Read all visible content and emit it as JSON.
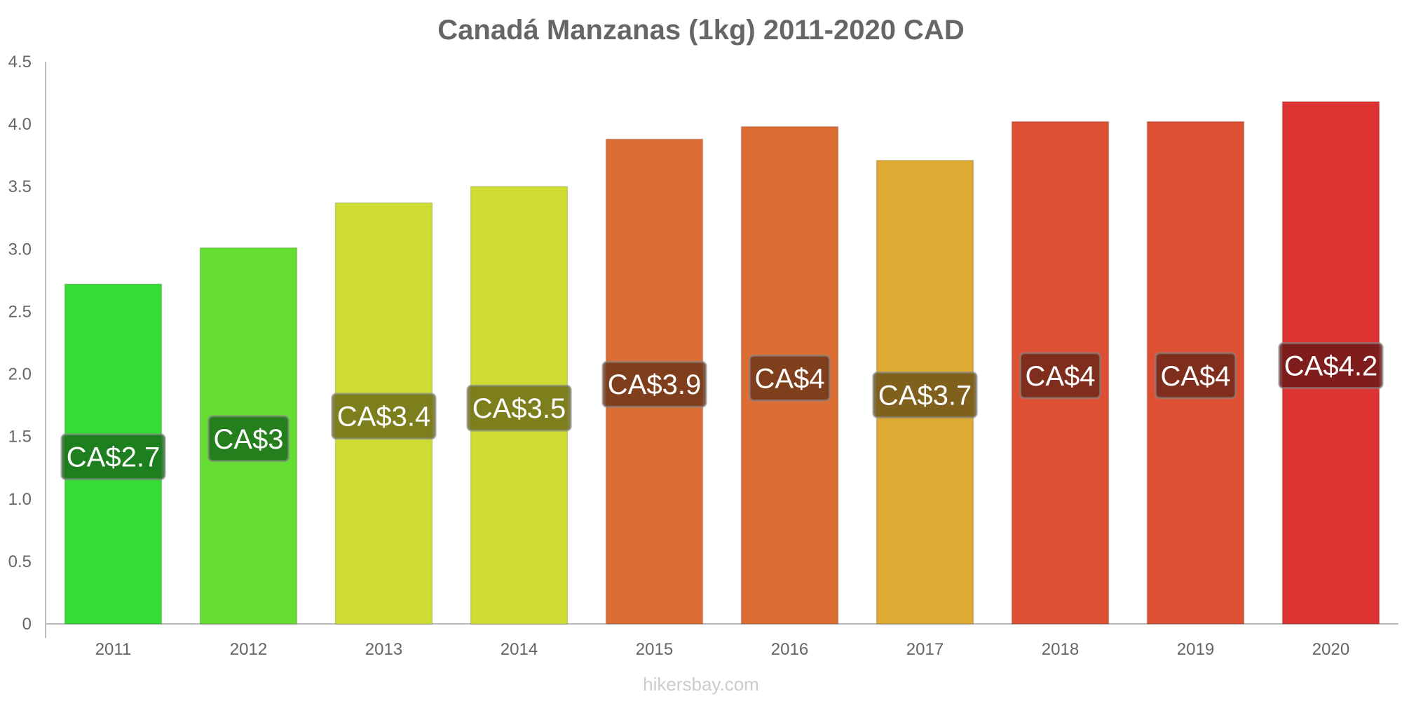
{
  "chart_data": {
    "type": "bar",
    "title": "Canadá Manzanas (1kg) 2011-2020 CAD",
    "xlabel": "",
    "ylabel": "",
    "categories": [
      "2011",
      "2012",
      "2013",
      "2014",
      "2015",
      "2016",
      "2017",
      "2018",
      "2019",
      "2020"
    ],
    "values": [
      2.72,
      3.01,
      3.37,
      3.5,
      3.88,
      3.98,
      3.71,
      4.02,
      4.02,
      4.18
    ],
    "data_labels": [
      "CA$2.7",
      "CA$3",
      "CA$3.4",
      "CA$3.5",
      "CA$3.9",
      "CA$4",
      "CA$3.7",
      "CA$4",
      "CA$4",
      "CA$4.2"
    ],
    "bar_colors": [
      "#33dd33",
      "#66dd33",
      "#cfdd33",
      "#cfdd33",
      "#dd6e33",
      "#dd6e33",
      "#ddaa33",
      "#dd5033",
      "#dd5033",
      "#dd3333"
    ],
    "label_bg_colors": [
      "#1a6e1a",
      "#1a6e1a",
      "#6e6e1a",
      "#6e6e1a",
      "#6e371a",
      "#6e371a",
      "#6e551a",
      "#6e281a",
      "#6e281a",
      "#6e1a1a"
    ],
    "ylim": [
      0,
      4.5
    ],
    "yticks": [
      "0",
      "0.5",
      "1.0",
      "1.5",
      "2.0",
      "2.5",
      "3.0",
      "3.5",
      "4.0",
      "4.5"
    ],
    "ytick_values": [
      0,
      0.5,
      1.0,
      1.5,
      2.0,
      2.5,
      3.0,
      3.5,
      4.0,
      4.5
    ],
    "grid": false,
    "legend": "none"
  },
  "watermark": "hikersbay.com"
}
